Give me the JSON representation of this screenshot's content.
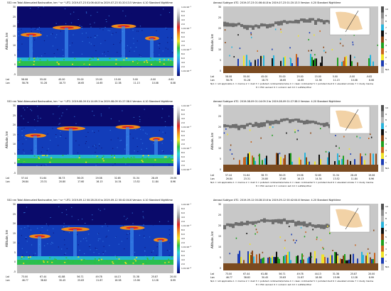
{
  "left_panels": [
    {
      "title": "532 nm Total Attenuated Backscatter, km⁻¹ sr⁻¹   UTC: 2019-07-23 01:06:44.8 to 2019-07-23 01:20:13.5   Version: 4.10  Standard  Nighttime",
      "ylabel": "Altitude, km",
      "lat_label": "Lat",
      "lon_label": "Lon",
      "lat": [
        "58.08",
        "55.00",
        "45.00",
        "35.00",
        "25.00",
        "15.00",
        "5.00",
        "-5.00",
        "-9.82"
      ],
      "lon": [
        "58.76",
        "51.28",
        "18.73",
        "16.65",
        "14.65",
        "12.38",
        "11.13",
        "10.08",
        "8.08"
      ]
    },
    {
      "title": "532 nm Total Attenuated Backscatter, km⁻¹ sr⁻¹   UTC: 2019-08-09 01:14:09.3 to 2019-08-09 01:27:38.0   Version: 4.10  Standard  Nighttime",
      "ylabel": "Altitude, km",
      "lat_label": "Lat",
      "lon_label": "Lon",
      "lat": [
        "57.44",
        "51.64",
        "38.73",
        "36.03",
        "29.58",
        "32.85",
        "31.34",
        "28.49",
        "19.06"
      ],
      "lon": [
        "26.84",
        "23.31",
        "20.80",
        "17.60",
        "16.13",
        "14.34",
        "13.52",
        "11.84",
        "8.96"
      ]
    },
    {
      "title": "532 nm Total Attenuated Backscatter, km⁻¹ sr⁻¹   UTC: 2019-09-12 00:28:20.6 to 2019-09-12 00:42:04.6   Version: 4.10  Standard  Nighttime",
      "ylabel": "Altitude, km",
      "lat_label": "Lat",
      "lon_label": "Lon",
      "lat": [
        "73.00",
        "67.44",
        "61.88",
        "56.71",
        "49.78",
        "44.13",
        "31.38",
        "25.87",
        "20.00"
      ],
      "lon": [
        "46.77",
        "38.82",
        "30.45",
        "25.83",
        "21.87",
        "18.58",
        "15.96",
        "12.28",
        "8.99"
      ]
    }
  ],
  "right_panels": [
    {
      "title": "Aerosol Subtype   UTC: 2019-07-23 01:06:44.8 to 2019-07-23 01:20:13.5   Version: 4.20  Standard  Nighttime",
      "ylabel": "Altitude, km",
      "lat": [
        "58.08",
        "55.00",
        "45.00",
        "35.00",
        "25.00",
        "15.00",
        "5.00",
        "-5.00",
        "-9.82"
      ],
      "lon": [
        "58.76",
        "51.28",
        "18.73",
        "16.65",
        "14.65",
        "12.38",
        "11.13",
        "10.08",
        "8.08"
      ],
      "legend1": "N/A = not applicable   1 = marine   2 = dust   3 = polluted continental/smoke   4 = clean continental   5 = polluted dust   6 = elevated smoke   7 = dusty marine",
      "legend2": "8 = PSC aerosol   9 = volcanic ash   10 = sulfate/other"
    },
    {
      "title": "Aerosol Subtype   UTC: 2019-08-09 01:14:09.3 to 2019-08-09 01:27:38.0   Version: 4.20  Standard  Nighttime",
      "ylabel": "Altitude, km",
      "lat": [
        "57.44",
        "51.64",
        "38.73",
        "36.03",
        "29.58",
        "32.85",
        "31.34",
        "28.49",
        "19.06"
      ],
      "lon": [
        "26.84",
        "23.31",
        "20.80",
        "17.60",
        "16.13",
        "14.34",
        "13.52",
        "11.84",
        "8.96"
      ],
      "legend1": "N/A = not applicable   1 = marine   2 = dust   3 = polluted continental/smoke   4 = clean continental   5 = polluted dust   6 = elevated smoke   7 = dusty marine",
      "legend2": "8 = PSC aerosol   9 = volcanic ash   10 = sulfate/other"
    },
    {
      "title": "Aerosol Subtype   UTC: 2019-09-12 00:28:20.6 to 2019-09-12 00:42:04.6   Version: 4.20  Standard  Nighttime",
      "ylabel": "Altitude, km",
      "lat": [
        "73.00",
        "67.44",
        "61.88",
        "56.71",
        "49.78",
        "44.13",
        "31.38",
        "25.87",
        "20.00"
      ],
      "lon": [
        "46.77",
        "38.82",
        "30.45",
        "25.83",
        "21.87",
        "18.58",
        "15.96",
        "12.28",
        "8.99"
      ],
      "legend1": "N/A = not applicable   1 = marine   2 = dust   3 = polluted continental/smoke   4 = clean continental   5 = polluted dust   6 = elevated smoke   7 = dusty marine",
      "legend2": "8 = PSC aerosol   9 = volcanic ash   10 = sulfate/other"
    }
  ],
  "left_yticks": [
    "30",
    "25",
    "20",
    "15",
    "10",
    "5",
    "0",
    "-5"
  ],
  "right_yticks": [
    "30",
    "25",
    "20",
    "15",
    "10",
    "5",
    "0"
  ],
  "backscatter_cbar_labels": [
    "1.0×10⁻¹",
    "8.0",
    "6.0",
    "4.0",
    "2.0",
    "1.0×10⁻²",
    "8.0",
    "6.0",
    "4.0",
    "2.0",
    "1.0×10⁻³",
    "8.0",
    "6.0",
    "4.0",
    "2.0",
    "1.0×10⁻⁴"
  ],
  "subtype_cbar_labels": [
    "10",
    "9",
    "8",
    "7",
    "6",
    "5",
    "4",
    "3",
    "2",
    "1",
    "N/A"
  ],
  "colors": {
    "bs_dark": "#0a0a6a",
    "bs_blue": "#1446c8",
    "bs_sky": "#3c8cf0",
    "bs_cyan": "#2ad4d4",
    "bs_green": "#2cc040",
    "bs_yellow": "#f0e020",
    "bs_orange": "#f08c18",
    "bs_red": "#e02020",
    "bs_gray": "#bdbdbd",
    "subtype_bg": "#c8c8c8",
    "subtype_gray": "#6e6e6e",
    "marine": "#1c3cb4",
    "dust": "#f0e428",
    "polluted_cont": "#c8641e",
    "clean_cont": "#1ea01e",
    "polluted_dust": "#8c4614",
    "elevated_smoke": "#101010",
    "dusty_marine": "#28b4dc"
  }
}
